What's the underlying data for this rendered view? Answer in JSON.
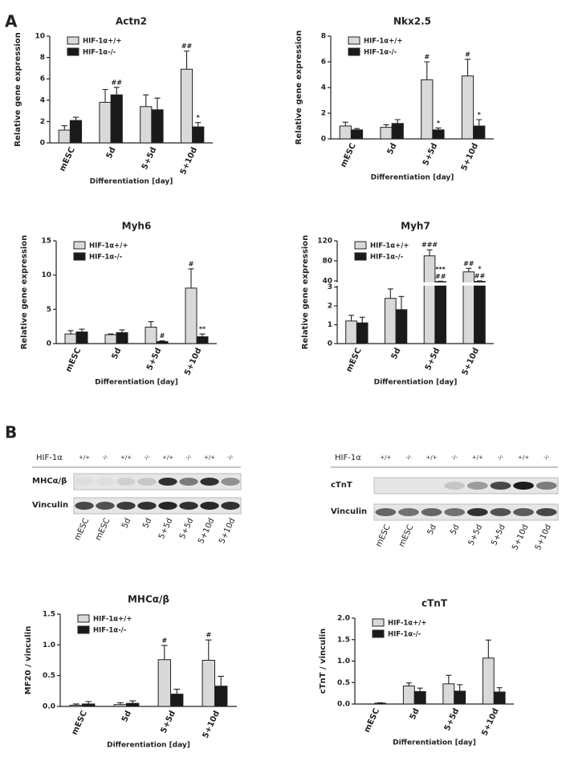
{
  "panels": {
    "a": "A",
    "b": "B"
  },
  "chart_data": [
    {
      "type": "bar",
      "title": "Actn2",
      "ylabel": "Relative gene expression",
      "xlabel": "Differentiation [day]",
      "categories": [
        "mESC",
        "5d",
        "5+5d",
        "5+10d"
      ],
      "ylim": [
        0,
        10
      ],
      "yticks": [
        0,
        2,
        4,
        6,
        8,
        10
      ],
      "legend": "upper left",
      "series": [
        {
          "name": "HIF-1α+/+",
          "color": "#d9d9d9",
          "values": [
            1.2,
            3.8,
            3.4,
            6.9
          ],
          "errors": [
            0.4,
            1.2,
            1.1,
            1.7
          ],
          "annotations": [
            null,
            null,
            null,
            "##"
          ]
        },
        {
          "name": "HIF-1α-/-",
          "color": "#1a1a1a",
          "values": [
            2.1,
            4.5,
            3.1,
            1.5
          ],
          "errors": [
            0.3,
            0.7,
            1.1,
            0.4
          ],
          "annotations": [
            null,
            "##",
            null,
            "*"
          ]
        }
      ]
    },
    {
      "type": "bar",
      "title": "Nkx2.5",
      "ylabel": "Relative gene expression",
      "xlabel": "Differentiation [day]",
      "categories": [
        "mESC",
        "5d",
        "5+5d",
        "5+10d"
      ],
      "ylim": [
        0,
        8
      ],
      "yticks": [
        0,
        2,
        4,
        6,
        8
      ],
      "legend": "upper left",
      "series": [
        {
          "name": "HIF-1α+/+",
          "color": "#d9d9d9",
          "values": [
            1.0,
            0.9,
            4.6,
            4.9
          ],
          "errors": [
            0.3,
            0.2,
            1.4,
            1.3
          ],
          "annotations": [
            null,
            null,
            "#",
            "#"
          ]
        },
        {
          "name": "HIF-1α-/-",
          "color": "#1a1a1a",
          "values": [
            0.7,
            1.2,
            0.7,
            1.0
          ],
          "errors": [
            0.1,
            0.3,
            0.15,
            0.5
          ],
          "annotations": [
            null,
            null,
            "*",
            "*"
          ]
        }
      ]
    },
    {
      "type": "bar",
      "title": "Myh6",
      "ylabel": "Relative gene expression",
      "xlabel": "Differentiation [day]",
      "categories": [
        "mESC",
        "5d",
        "5+5d",
        "5+10d"
      ],
      "ylim": [
        0,
        15
      ],
      "yticks": [
        0,
        5,
        10,
        15
      ],
      "legend": "upper left",
      "series": [
        {
          "name": "HIF-1α+/+",
          "color": "#d9d9d9",
          "values": [
            1.4,
            1.3,
            2.4,
            8.1
          ],
          "errors": [
            0.5,
            0.1,
            0.8,
            2.8
          ],
          "annotations": [
            null,
            null,
            null,
            "#"
          ]
        },
        {
          "name": "HIF-1α-/-",
          "color": "#1a1a1a",
          "values": [
            1.7,
            1.6,
            0.3,
            1.0
          ],
          "errors": [
            0.4,
            0.4,
            0.1,
            0.4
          ],
          "annotations": [
            null,
            null,
            "#",
            "**"
          ]
        }
      ]
    },
    {
      "type": "bar",
      "title": "Myh7",
      "ylabel": "Relative gene expression",
      "xlabel": "Differentiation [day]",
      "categories": [
        "mESC",
        "5d",
        "5+5d",
        "5+10d"
      ],
      "ylim": [
        0,
        120
      ],
      "ybreak": [
        3,
        40
      ],
      "yticks": [
        0,
        1,
        2,
        3,
        40,
        80,
        120
      ],
      "legend": "upper left",
      "series": [
        {
          "name": "HIF-1α+/+",
          "color": "#d9d9d9",
          "values": [
            1.2,
            2.4,
            90,
            58
          ],
          "errors": [
            0.3,
            0.5,
            12,
            7
          ],
          "annotations": [
            null,
            null,
            "###",
            "##"
          ]
        },
        {
          "name": "HIF-1α-/-",
          "color": "#1a1a1a",
          "values": [
            1.1,
            1.8,
            36,
            37
          ],
          "errors": [
            0.3,
            0.7,
            2,
            3
          ],
          "annotations": [
            null,
            null,
            "***",
            "*"
          ],
          "annotations2": [
            null,
            null,
            "##",
            "##"
          ]
        }
      ]
    },
    {
      "type": "bar",
      "title": "MHCα/β",
      "ylabel": "MF20 / vinculin",
      "xlabel": "Differentiation [day]",
      "categories": [
        "mESC",
        "5d",
        "5+5d",
        "5+10d"
      ],
      "ylim": [
        0,
        1.5
      ],
      "yticks": [
        {
          "value": 0,
          "label": "0.0"
        },
        0.5,
        {
          "value": 1,
          "label": "1.0"
        },
        1.5
      ],
      "legend": "upper left",
      "series": [
        {
          "name": "HIF-1α+/+",
          "color": "#d9d9d9",
          "values": [
            0.02,
            0.03,
            0.76,
            0.75
          ],
          "errors": [
            0.02,
            0.03,
            0.23,
            0.33
          ],
          "annotations": [
            null,
            null,
            "#",
            "#"
          ]
        },
        {
          "name": "HIF-1α-/-",
          "color": "#1a1a1a",
          "values": [
            0.04,
            0.05,
            0.2,
            0.33
          ],
          "errors": [
            0.04,
            0.04,
            0.08,
            0.16
          ]
        }
      ]
    },
    {
      "type": "bar",
      "title": "cTnT",
      "ylabel": "cTnT / vinculin",
      "xlabel": "Differentiation [day]",
      "categories": [
        "mESC",
        "5d",
        "5+5d",
        "5+10d"
      ],
      "ylim": [
        0,
        2
      ],
      "yticks": [
        {
          "value": 0,
          "label": "0.0"
        },
        0.5,
        {
          "value": 1,
          "label": "1.0"
        },
        1.5,
        {
          "value": 2,
          "label": "2.0"
        }
      ],
      "legend": "upper left",
      "series": [
        {
          "name": "HIF-1α+/+",
          "color": "#d9d9d9",
          "values": [
            0,
            0.42,
            0.47,
            1.07
          ],
          "errors": [
            0,
            0.07,
            0.2,
            0.42
          ]
        },
        {
          "name": "HIF-1α-/-",
          "color": "#1a1a1a",
          "values": [
            0.02,
            0.29,
            0.3,
            0.28
          ],
          "errors": [
            0.01,
            0.08,
            0.15,
            0.1
          ]
        }
      ]
    }
  ],
  "blots": [
    {
      "header": "HIF-1α",
      "genotypes": [
        "+/+",
        "-/-",
        "+/+",
        "-/-",
        "+/+",
        "-/-",
        "+/+",
        "-/-"
      ],
      "rows": [
        "MHCα/β",
        "Vinculin"
      ],
      "lanes": [
        "mESC",
        "mESC",
        "5d",
        "5d",
        "5+5d",
        "5+5d",
        "5+10d",
        "5+10d"
      ]
    },
    {
      "header": "HIF-1α",
      "genotypes": [
        "+/+",
        "-/-",
        "+/+",
        "-/-",
        "+/+",
        "-/-",
        "+/+",
        "-/-"
      ],
      "rows": [
        "cTnT",
        "Vinculin"
      ],
      "lanes": [
        "mESC",
        "mESC",
        "5d",
        "5d",
        "5+5d",
        "5+5d",
        "5+10d",
        "5+10d"
      ]
    }
  ]
}
